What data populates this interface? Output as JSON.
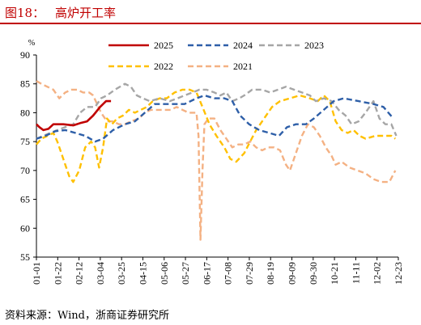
{
  "header": {
    "figure_label": "图18：",
    "title": "高炉开工率"
  },
  "source": "资料来源：Wind，浙商证券研究所",
  "chart_data": {
    "type": "line",
    "title": "高炉开工率",
    "ylabel": "%",
    "ylim": [
      55,
      90
    ],
    "yticks": [
      55,
      60,
      65,
      70,
      75,
      80,
      85,
      90
    ],
    "xlabels": [
      "01-01",
      "01-22",
      "02-12",
      "03-04",
      "03-25",
      "04-15",
      "05-06",
      "05-27",
      "06-17",
      "07-08",
      "07-29",
      "08-19",
      "09-09",
      "09-30",
      "10-21",
      "11-11",
      "12-02",
      "12-23"
    ],
    "x_range": [
      1,
      365
    ],
    "legend": {
      "placement": "top",
      "columns": 3
    },
    "series": [
      {
        "name": "2025",
        "color": "#c00000",
        "style": "solid",
        "points": [
          [
            1,
            78
          ],
          [
            4,
            77.5
          ],
          [
            8,
            77
          ],
          [
            13,
            77.2
          ],
          [
            18,
            78
          ],
          [
            28,
            78
          ],
          [
            38,
            77.8
          ],
          [
            45,
            78.2
          ],
          [
            52,
            78.5
          ],
          [
            58,
            79.5
          ],
          [
            65,
            81
          ],
          [
            71,
            82
          ],
          [
            76,
            82
          ]
        ]
      },
      {
        "name": "2024",
        "color": "#2e5fa8",
        "style": "dashed",
        "points": [
          [
            1,
            75.5
          ],
          [
            10,
            76
          ],
          [
            20,
            76.8
          ],
          [
            30,
            77
          ],
          [
            40,
            76.5
          ],
          [
            50,
            76
          ],
          [
            60,
            75
          ],
          [
            68,
            75.5
          ],
          [
            78,
            77
          ],
          [
            90,
            78
          ],
          [
            100,
            78.5
          ],
          [
            110,
            80
          ],
          [
            120,
            81.5
          ],
          [
            135,
            81.5
          ],
          [
            150,
            81.5
          ],
          [
            162,
            82.5
          ],
          [
            170,
            83
          ],
          [
            180,
            82.5
          ],
          [
            190,
            82.5
          ],
          [
            198,
            82
          ],
          [
            206,
            79.5
          ],
          [
            215,
            78
          ],
          [
            225,
            77
          ],
          [
            235,
            76.5
          ],
          [
            245,
            76
          ],
          [
            253,
            77.5
          ],
          [
            262,
            78
          ],
          [
            272,
            78
          ],
          [
            280,
            79
          ],
          [
            290,
            80.5
          ],
          [
            300,
            82
          ],
          [
            310,
            82.5
          ],
          [
            325,
            82
          ],
          [
            340,
            81.5
          ],
          [
            350,
            81
          ],
          [
            360,
            79
          ]
        ]
      },
      {
        "name": "2023",
        "color": "#a6a6a6",
        "style": "dashed",
        "points": [
          [
            1,
            75.5
          ],
          [
            8,
            76
          ],
          [
            15,
            76.5
          ],
          [
            22,
            77
          ],
          [
            30,
            77.5
          ],
          [
            38,
            78
          ],
          [
            45,
            80
          ],
          [
            52,
            81
          ],
          [
            60,
            81
          ],
          [
            66,
            82.5
          ],
          [
            72,
            83
          ],
          [
            80,
            84
          ],
          [
            90,
            85
          ],
          [
            96,
            84.5
          ],
          [
            102,
            83
          ],
          [
            108,
            82.5
          ],
          [
            115,
            82
          ],
          [
            125,
            82.5
          ],
          [
            135,
            82
          ],
          [
            143,
            82.5
          ],
          [
            150,
            83
          ],
          [
            158,
            83.5
          ],
          [
            165,
            84
          ],
          [
            172,
            84
          ],
          [
            180,
            83.5
          ],
          [
            186,
            83
          ],
          [
            192,
            83.5
          ],
          [
            198,
            82
          ],
          [
            205,
            82.5
          ],
          [
            210,
            83
          ],
          [
            218,
            84
          ],
          [
            228,
            84
          ],
          [
            236,
            83.5
          ],
          [
            244,
            84
          ],
          [
            252,
            84.5
          ],
          [
            260,
            84
          ],
          [
            268,
            83.5
          ],
          [
            276,
            83
          ],
          [
            282,
            82
          ],
          [
            290,
            82.5
          ],
          [
            298,
            82
          ],
          [
            305,
            80.5
          ],
          [
            312,
            79.5
          ],
          [
            318,
            78
          ],
          [
            325,
            78.5
          ],
          [
            332,
            80
          ],
          [
            340,
            82
          ],
          [
            346,
            79
          ],
          [
            352,
            78
          ],
          [
            358,
            78
          ],
          [
            363,
            76
          ]
        ]
      },
      {
        "name": "2022",
        "color": "#ffc000",
        "style": "dashed",
        "points": [
          [
            1,
            74.5
          ],
          [
            6,
            75.5
          ],
          [
            12,
            76
          ],
          [
            18,
            76.5
          ],
          [
            22,
            75
          ],
          [
            28,
            72
          ],
          [
            34,
            69
          ],
          [
            38,
            68
          ],
          [
            44,
            70
          ],
          [
            50,
            74
          ],
          [
            56,
            75
          ],
          [
            60,
            74
          ],
          [
            64,
            70.5
          ],
          [
            68,
            74
          ],
          [
            72,
            79
          ],
          [
            77,
            78
          ],
          [
            82,
            79
          ],
          [
            88,
            79.5
          ],
          [
            94,
            80.5
          ],
          [
            100,
            80
          ],
          [
            106,
            80.5
          ],
          [
            112,
            81
          ],
          [
            118,
            82
          ],
          [
            125,
            82.5
          ],
          [
            132,
            82.5
          ],
          [
            140,
            83.5
          ],
          [
            148,
            84
          ],
          [
            155,
            84
          ],
          [
            162,
            83.5
          ],
          [
            168,
            81
          ],
          [
            175,
            78
          ],
          [
            182,
            76
          ],
          [
            190,
            74
          ],
          [
            196,
            72
          ],
          [
            202,
            71.5
          ],
          [
            210,
            73
          ],
          [
            216,
            75
          ],
          [
            222,
            77
          ],
          [
            230,
            79
          ],
          [
            238,
            81
          ],
          [
            246,
            82
          ],
          [
            256,
            82.5
          ],
          [
            266,
            83
          ],
          [
            276,
            82.5
          ],
          [
            284,
            82
          ],
          [
            290,
            83
          ],
          [
            296,
            82
          ],
          [
            302,
            78.5
          ],
          [
            308,
            77
          ],
          [
            314,
            76.5
          ],
          [
            320,
            77
          ],
          [
            326,
            76
          ],
          [
            332,
            75.5
          ],
          [
            342,
            76
          ],
          [
            352,
            76
          ],
          [
            358,
            76
          ],
          [
            362,
            75.5
          ]
        ]
      },
      {
        "name": "2021",
        "color": "#f4b183",
        "style": "dashed",
        "points": [
          [
            1,
            85.5
          ],
          [
            6,
            85
          ],
          [
            12,
            84.5
          ],
          [
            18,
            84
          ],
          [
            24,
            82.5
          ],
          [
            30,
            83.5
          ],
          [
            36,
            84
          ],
          [
            42,
            84
          ],
          [
            48,
            83.5
          ],
          [
            54,
            83.5
          ],
          [
            58,
            83
          ],
          [
            62,
            81.5
          ],
          [
            66,
            80
          ],
          [
            72,
            78.5
          ],
          [
            78,
            78.5
          ],
          [
            84,
            78
          ],
          [
            90,
            78
          ],
          [
            96,
            78.5
          ],
          [
            104,
            79
          ],
          [
            110,
            80
          ],
          [
            116,
            80.5
          ],
          [
            122,
            80.5
          ],
          [
            130,
            80.5
          ],
          [
            136,
            80.5
          ],
          [
            142,
            81
          ],
          [
            148,
            80.5
          ],
          [
            154,
            80
          ],
          [
            158,
            80
          ],
          [
            162,
            80
          ],
          [
            164,
            76
          ],
          [
            166,
            58
          ],
          [
            168,
            70
          ],
          [
            170,
            78
          ],
          [
            174,
            79
          ],
          [
            180,
            79
          ],
          [
            186,
            77
          ],
          [
            192,
            75.5
          ],
          [
            198,
            74
          ],
          [
            204,
            74.5
          ],
          [
            210,
            74.5
          ],
          [
            216,
            75
          ],
          [
            222,
            74
          ],
          [
            228,
            73.5
          ],
          [
            234,
            74
          ],
          [
            240,
            74
          ],
          [
            246,
            73.5
          ],
          [
            252,
            71
          ],
          [
            256,
            70
          ],
          [
            262,
            73
          ],
          [
            268,
            76
          ],
          [
            274,
            78
          ],
          [
            280,
            77.5
          ],
          [
            286,
            76
          ],
          [
            292,
            74
          ],
          [
            298,
            72.5
          ],
          [
            302,
            71
          ],
          [
            308,
            71.5
          ],
          [
            316,
            70.5
          ],
          [
            324,
            70
          ],
          [
            332,
            69.5
          ],
          [
            340,
            68.5
          ],
          [
            348,
            68
          ],
          [
            356,
            68
          ],
          [
            362,
            70
          ]
        ]
      }
    ]
  }
}
